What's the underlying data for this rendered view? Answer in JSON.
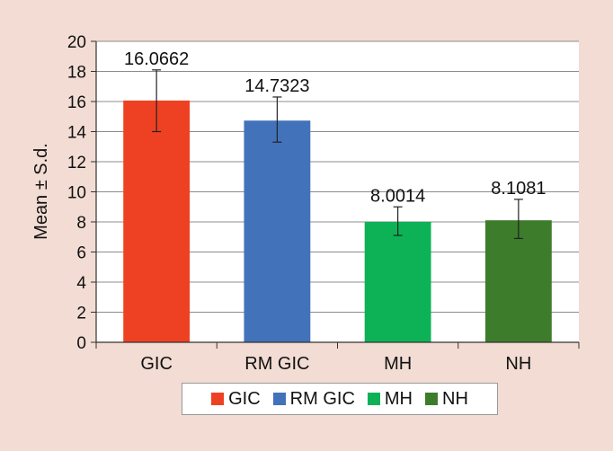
{
  "chart_data": {
    "type": "bar",
    "title": "",
    "xlabel": "",
    "ylabel": "Mean ± S.d.",
    "ylim": [
      0,
      20
    ],
    "yticks": [
      "0",
      "2",
      "4",
      "6",
      "8",
      "10",
      "12",
      "14",
      "16",
      "18",
      "20"
    ],
    "categories": [
      "GIC",
      "RM GIC",
      "MH",
      "NH"
    ],
    "values": [
      16.0662,
      14.7323,
      8.0014,
      8.1081
    ],
    "value_labels": [
      "16.0662",
      "14.7323",
      "8.0014",
      "8.1081"
    ],
    "error_bars": [
      [
        14.0,
        18.1
      ],
      [
        13.3,
        16.3
      ],
      [
        7.1,
        9.0
      ],
      [
        6.9,
        9.5
      ]
    ],
    "colors": [
      "#ee4123",
      "#4272ba",
      "#0db256",
      "#3d7c2b"
    ],
    "legend": {
      "placement": "bottom",
      "entries": [
        "GIC",
        "RM GIC",
        "MH",
        "NH"
      ]
    },
    "grid": "horizontal"
  }
}
